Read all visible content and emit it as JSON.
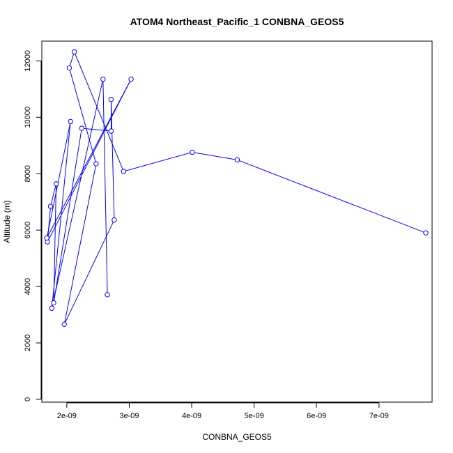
{
  "chart_data": {
    "type": "line",
    "title": "ATOM4 Northeast_Pacific_1 CONBNA_GEOS5",
    "xlabel": "CONBNA_GEOS5",
    "ylabel": "Altitude (m)",
    "xlim": [
      1.6e-09,
      7.85e-09
    ],
    "ylim": [
      -100,
      12700
    ],
    "x_ticks": [
      2e-09,
      3e-09,
      4e-09,
      5e-09,
      6e-09,
      7e-09
    ],
    "x_tick_labels": [
      "2e-09",
      "3e-09",
      "4e-09",
      "5e-09",
      "6e-09",
      "7e-09"
    ],
    "y_ticks": [
      0,
      2000,
      4000,
      6000,
      8000,
      10000,
      12000
    ],
    "y_tick_labels": [
      "0",
      "2000",
      "4000",
      "6000",
      "8000",
      "10000",
      "12000"
    ],
    "grid": false,
    "legend": "none",
    "series": [
      {
        "color": "#0000ff",
        "marker": "open-circle",
        "points": [
          {
            "x": 7.75e-09,
            "y": 5900
          },
          {
            "x": 4.73e-09,
            "y": 8490
          },
          {
            "x": 4.01e-09,
            "y": 8760
          },
          {
            "x": 2.91e-09,
            "y": 8080
          },
          {
            "x": 2.12e-09,
            "y": 12320
          },
          {
            "x": 2.04e-09,
            "y": 11750
          },
          {
            "x": 2.47e-09,
            "y": 8350
          },
          {
            "x": 1.96e-09,
            "y": 2660
          },
          {
            "x": 2.76e-09,
            "y": 6360
          },
          {
            "x": 2.71e-09,
            "y": 10630
          },
          {
            "x": 2.71e-09,
            "y": 9510
          },
          {
            "x": 2.24e-09,
            "y": 9610
          },
          {
            "x": 1.79e-09,
            "y": 3420
          },
          {
            "x": 1.83e-09,
            "y": 7640
          },
          {
            "x": 1.74e-09,
            "y": 6840
          },
          {
            "x": 1.69e-09,
            "y": 5580
          },
          {
            "x": 3.03e-09,
            "y": 11350
          },
          {
            "x": 1.68e-09,
            "y": 5720
          },
          {
            "x": 2.06e-09,
            "y": 9850
          },
          {
            "x": 1.76e-09,
            "y": 3230
          },
          {
            "x": 2.58e-09,
            "y": 11350
          },
          {
            "x": 2.65e-09,
            "y": 3710
          }
        ]
      }
    ]
  }
}
